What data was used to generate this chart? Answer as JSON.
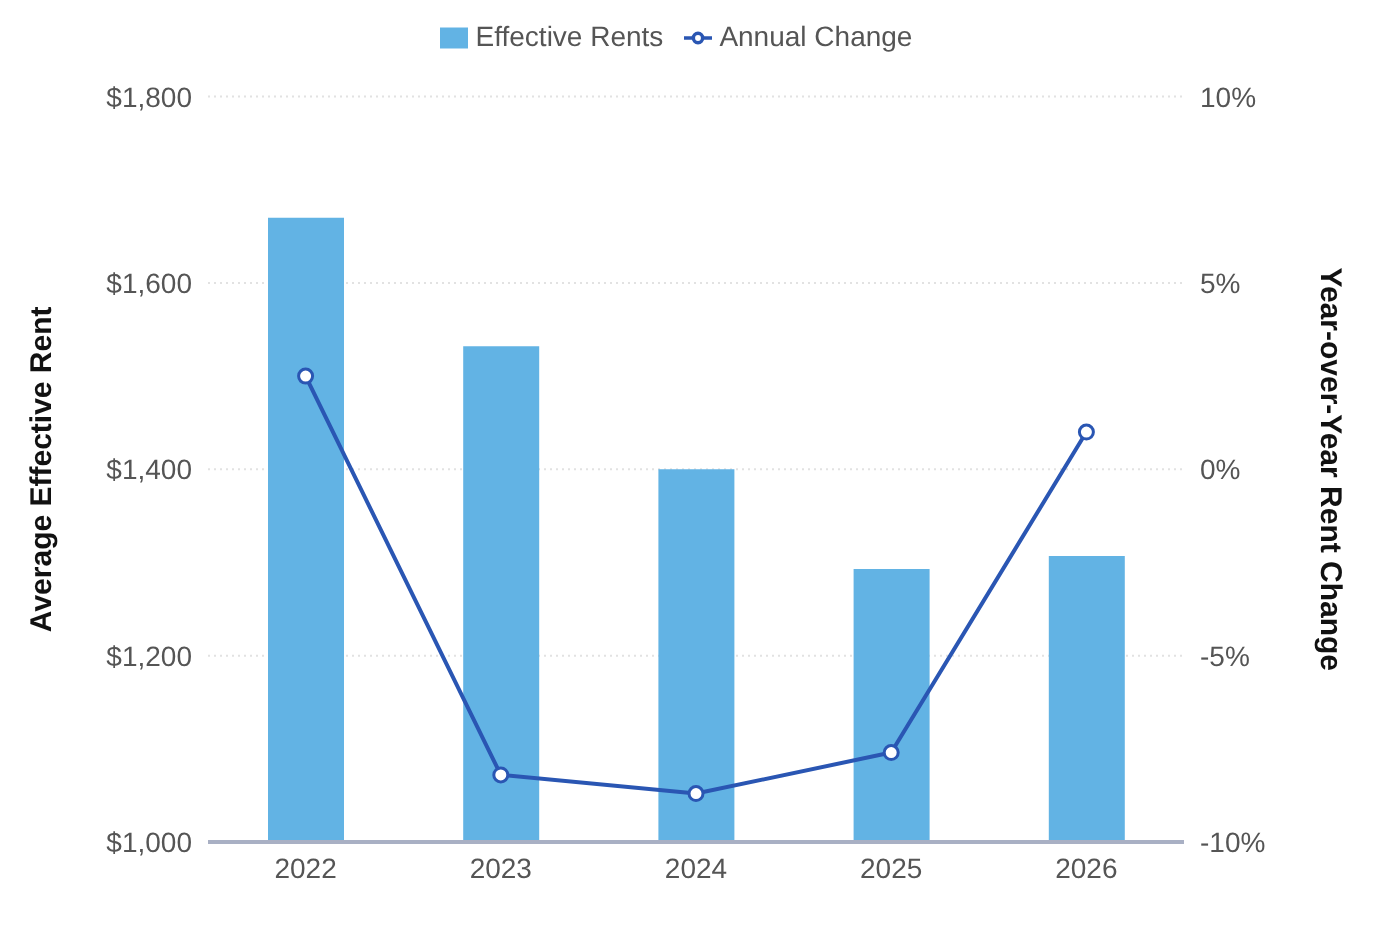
{
  "chart_data": {
    "type": "bar",
    "categories": [
      "2022",
      "2023",
      "2024",
      "2025",
      "2026"
    ],
    "series": [
      {
        "name": "Effective Rents",
        "color": "#62b3e4",
        "values": [
          1670,
          1532,
          1400,
          1293,
          1307
        ]
      },
      {
        "name": "Annual Change",
        "type": "line",
        "axis": "y2",
        "color": "#2a56b3",
        "marker": "circle",
        "values": [
          2.5,
          -8.2,
          -8.7,
          -7.6,
          1.0
        ]
      }
    ],
    "ylabel": "Average Effective Rent",
    "y2label": "Year-over-Year Rent Change",
    "ylim": [
      1000,
      1800
    ],
    "yticks": [
      {
        "value": 1000,
        "label": "$1,000"
      },
      {
        "value": 1200,
        "label": "$1,200"
      },
      {
        "value": 1400,
        "label": "$1,400"
      },
      {
        "value": 1600,
        "label": "$1,600"
      },
      {
        "value": 1800,
        "label": "$1,800"
      }
    ],
    "y2lim": [
      -10,
      10
    ],
    "y2ticks": [
      {
        "value": -10,
        "label": "-10%"
      },
      {
        "value": -5,
        "label": "-5%"
      },
      {
        "value": 0,
        "label": "0%"
      },
      {
        "value": 5,
        "label": "5%"
      },
      {
        "value": 10,
        "label": "10%"
      }
    ],
    "grid": "y",
    "legend": "top"
  }
}
